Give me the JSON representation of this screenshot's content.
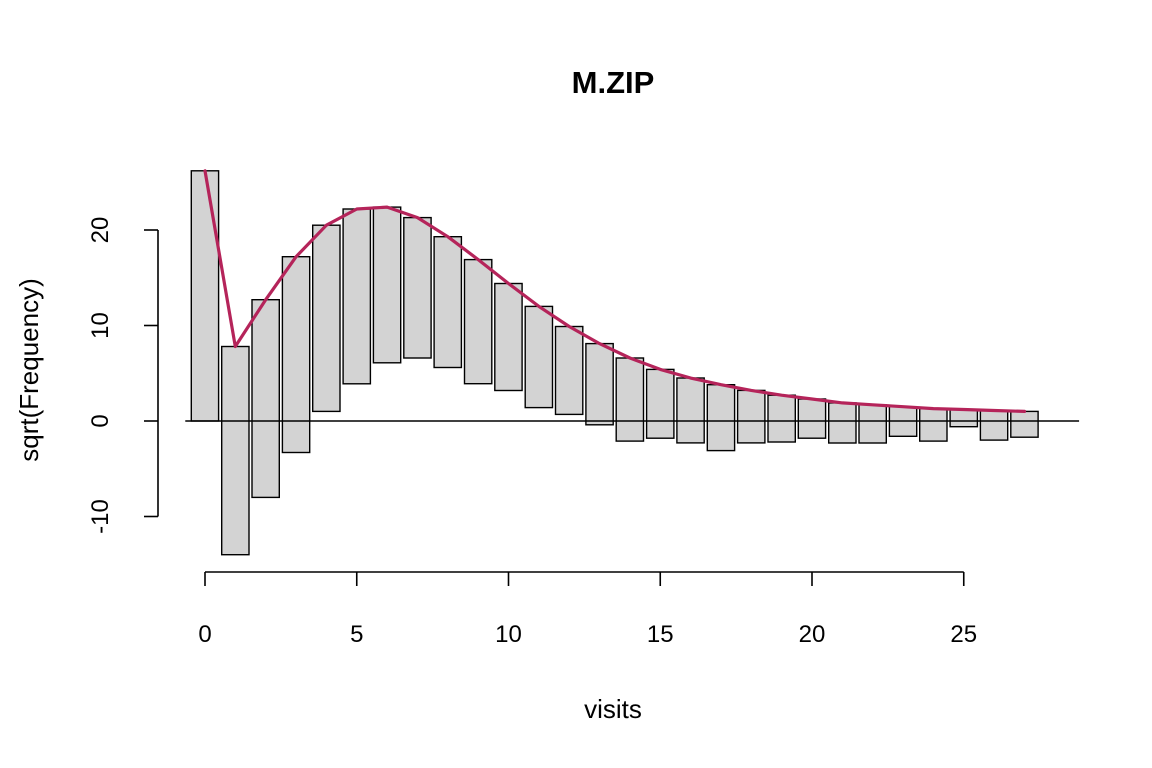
{
  "chart_data": {
    "type": "bar",
    "title": "M.ZIP",
    "xlabel": "visits",
    "ylabel": "sqrt(Frequency)",
    "x": [
      0,
      1,
      2,
      3,
      4,
      5,
      6,
      7,
      8,
      9,
      10,
      11,
      12,
      13,
      14,
      15,
      16,
      17,
      18,
      19,
      20,
      21,
      22,
      23,
      24,
      25,
      26,
      27
    ],
    "bars": [
      {
        "x": 0,
        "bottom": 0.0,
        "top": 26.2
      },
      {
        "x": 1,
        "bottom": -14.0,
        "top": 7.8
      },
      {
        "x": 2,
        "bottom": -8.0,
        "top": 12.7
      },
      {
        "x": 3,
        "bottom": -3.3,
        "top": 17.2
      },
      {
        "x": 4,
        "bottom": 1.0,
        "top": 20.5
      },
      {
        "x": 5,
        "bottom": 3.9,
        "top": 22.2
      },
      {
        "x": 6,
        "bottom": 6.1,
        "top": 22.4
      },
      {
        "x": 7,
        "bottom": 6.6,
        "top": 21.3
      },
      {
        "x": 8,
        "bottom": 5.6,
        "top": 19.3
      },
      {
        "x": 9,
        "bottom": 3.9,
        "top": 16.9
      },
      {
        "x": 10,
        "bottom": 3.2,
        "top": 14.4
      },
      {
        "x": 11,
        "bottom": 1.4,
        "top": 12.0
      },
      {
        "x": 12,
        "bottom": 0.7,
        "top": 9.9
      },
      {
        "x": 13,
        "bottom": -0.4,
        "top": 8.1
      },
      {
        "x": 14,
        "bottom": -2.1,
        "top": 6.6
      },
      {
        "x": 15,
        "bottom": -1.8,
        "top": 5.4
      },
      {
        "x": 16,
        "bottom": -2.3,
        "top": 4.5
      },
      {
        "x": 17,
        "bottom": -3.1,
        "top": 3.8
      },
      {
        "x": 18,
        "bottom": -2.3,
        "top": 3.2
      },
      {
        "x": 19,
        "bottom": -2.2,
        "top": 2.7
      },
      {
        "x": 20,
        "bottom": -1.8,
        "top": 2.3
      },
      {
        "x": 21,
        "bottom": -2.3,
        "top": 1.9
      },
      {
        "x": 22,
        "bottom": -2.3,
        "top": 1.7
      },
      {
        "x": 23,
        "bottom": -1.6,
        "top": 1.5
      },
      {
        "x": 24,
        "bottom": -2.1,
        "top": 1.3
      },
      {
        "x": 25,
        "bottom": -0.6,
        "top": 1.2
      },
      {
        "x": 26,
        "bottom": -2.0,
        "top": 1.1
      },
      {
        "x": 27,
        "bottom": -1.7,
        "top": 1.0
      }
    ],
    "fitted": [
      26.2,
      7.8,
      12.7,
      17.2,
      20.5,
      22.2,
      22.4,
      21.3,
      19.3,
      16.9,
      14.4,
      12.0,
      9.9,
      8.1,
      6.6,
      5.4,
      4.5,
      3.8,
      3.2,
      2.7,
      2.3,
      1.9,
      1.7,
      1.5,
      1.3,
      1.2,
      1.1,
      1.0
    ],
    "xticks": [
      0,
      5,
      10,
      15,
      20,
      25
    ],
    "yticks": [
      -10,
      0,
      10,
      20
    ],
    "xlim": [
      -0.6,
      28.8
    ],
    "ylim": [
      -14.6,
      26.8
    ],
    "zero_reference_line": true,
    "grid": false,
    "colors": {
      "bar_fill": "#d3d3d3",
      "bar_border": "#000000",
      "fit_line": "#b5245a"
    }
  }
}
